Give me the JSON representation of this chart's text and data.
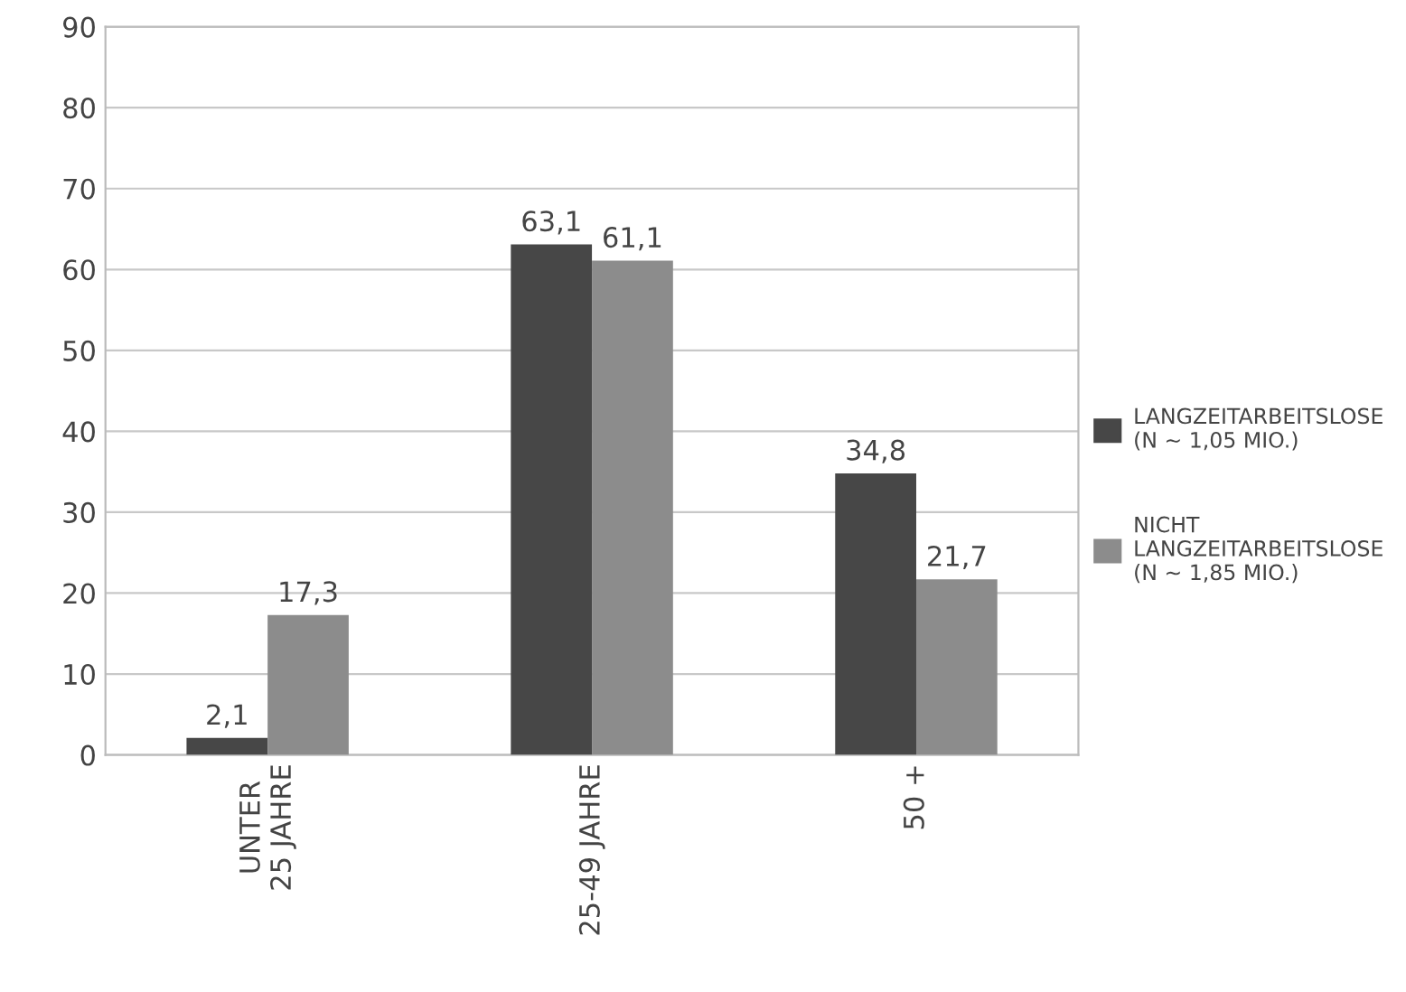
{
  "chart_data": {
    "type": "bar",
    "categories": [
      "UNTER\n25 JAHRE",
      "25-49 JAHRE",
      "50 +"
    ],
    "series": [
      {
        "name": "LANGZEITARBEITSLOSE\n(N ~ 1,05 MIO.)",
        "color": "#474747",
        "values": [
          2.1,
          63.1,
          34.8
        ],
        "value_labels": [
          "2,1",
          "63,1",
          "34,8"
        ]
      },
      {
        "name": "NICHT\nLANGZEITARBEITSLOSE\n(N ~ 1,85 MIO.)",
        "color": "#8c8c8c",
        "values": [
          17.3,
          61.1,
          21.7
        ],
        "value_labels": [
          "17,3",
          "61,1",
          "21,7"
        ]
      }
    ],
    "ylim": [
      0,
      90
    ],
    "yticks": [
      0,
      10,
      20,
      30,
      40,
      50,
      60,
      70,
      80,
      90
    ],
    "grid": "y",
    "legend": "right"
  }
}
